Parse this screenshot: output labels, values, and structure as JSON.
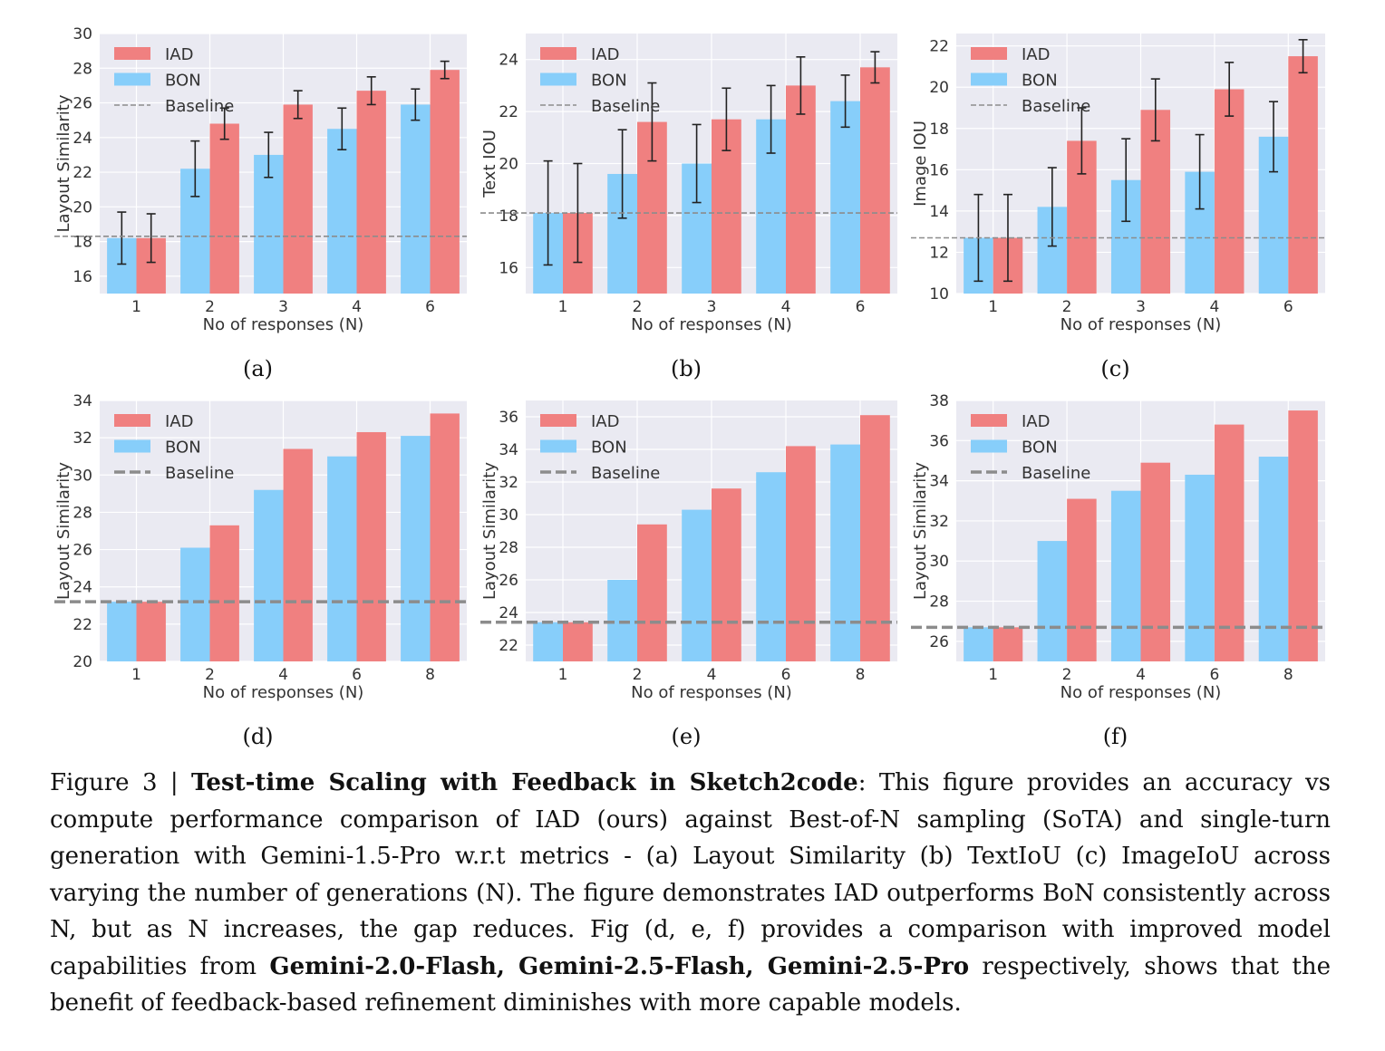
{
  "colors": {
    "iad": "#f08080",
    "bon": "#87cefa",
    "baseline": "#8c8c8c",
    "plot_bg": "#eaeaf2",
    "grid": "#ffffff",
    "error_bar": "#222222"
  },
  "chart_data": [
    {
      "panel": "(a)",
      "type": "bar",
      "categories": [
        "1",
        "2",
        "3",
        "4",
        "6"
      ],
      "xlabel": "No of responses (N)",
      "ylabel": "Layout Similarity",
      "ylim": [
        15,
        30
      ],
      "yticks": [
        16,
        18,
        20,
        22,
        24,
        26,
        28,
        30
      ],
      "series": [
        {
          "name": "IAD",
          "values": [
            18.2,
            24.8,
            25.9,
            26.7,
            27.9
          ],
          "errors": [
            1.4,
            0.9,
            0.8,
            0.8,
            0.5
          ]
        },
        {
          "name": "BON",
          "values": [
            18.2,
            22.2,
            23.0,
            24.5,
            25.9
          ],
          "errors": [
            1.5,
            1.6,
            1.3,
            1.2,
            0.9
          ]
        }
      ],
      "baseline": {
        "name": "Baseline",
        "value": 18.3,
        "style": "thin"
      },
      "legend": "top-left",
      "grid": true
    },
    {
      "panel": "(b)",
      "type": "bar",
      "categories": [
        "1",
        "2",
        "3",
        "4",
        "6"
      ],
      "xlabel": "No of responses (N)",
      "ylabel": "Text IOU",
      "ylim": [
        15,
        25
      ],
      "yticks": [
        16,
        18,
        20,
        22,
        24
      ],
      "series": [
        {
          "name": "IAD",
          "values": [
            18.1,
            21.6,
            21.7,
            23.0,
            23.7
          ],
          "errors": [
            1.9,
            1.5,
            1.2,
            1.1,
            0.6
          ]
        },
        {
          "name": "BON",
          "values": [
            18.1,
            19.6,
            20.0,
            21.7,
            22.4
          ],
          "errors": [
            2.0,
            1.7,
            1.5,
            1.3,
            1.0
          ]
        }
      ],
      "baseline": {
        "name": "Baseline",
        "value": 18.1,
        "style": "thin"
      },
      "legend": "top-left",
      "grid": true
    },
    {
      "panel": "(c)",
      "type": "bar",
      "categories": [
        "1",
        "2",
        "3",
        "4",
        "6"
      ],
      "xlabel": "No of responses (N)",
      "ylabel": "Image IOU",
      "ylim": [
        10,
        22.6
      ],
      "yticks": [
        10,
        12,
        14,
        16,
        18,
        20,
        22
      ],
      "series": [
        {
          "name": "IAD",
          "values": [
            12.7,
            17.4,
            18.9,
            19.9,
            21.5
          ],
          "errors": [
            2.1,
            1.6,
            1.5,
            1.3,
            0.8
          ]
        },
        {
          "name": "BON",
          "values": [
            12.7,
            14.2,
            15.5,
            15.9,
            17.6
          ],
          "errors": [
            2.1,
            1.9,
            2.0,
            1.8,
            1.7
          ]
        }
      ],
      "baseline": {
        "name": "Baseline",
        "value": 12.7,
        "style": "thin"
      },
      "legend": "top-left",
      "grid": true
    },
    {
      "panel": "(d)",
      "type": "bar",
      "categories": [
        "1",
        "2",
        "4",
        "6",
        "8"
      ],
      "xlabel": "No of responses (N)",
      "ylabel": "Layout Similarity",
      "ylim": [
        20,
        34
      ],
      "yticks": [
        20,
        22,
        24,
        26,
        28,
        30,
        32,
        34
      ],
      "series": [
        {
          "name": "IAD",
          "values": [
            23.2,
            27.3,
            31.4,
            32.3,
            33.3
          ]
        },
        {
          "name": "BON",
          "values": [
            23.2,
            26.1,
            29.2,
            31.0,
            32.1
          ]
        }
      ],
      "baseline": {
        "name": "Baseline",
        "value": 23.2,
        "style": "thick"
      },
      "legend": "top-left",
      "grid": true
    },
    {
      "panel": "(e)",
      "type": "bar",
      "categories": [
        "1",
        "2",
        "4",
        "6",
        "8"
      ],
      "xlabel": "No of responses (N)",
      "ylabel": "Layout Similarity",
      "ylim": [
        21,
        37
      ],
      "yticks": [
        22,
        24,
        26,
        28,
        30,
        32,
        34,
        36
      ],
      "series": [
        {
          "name": "IAD",
          "values": [
            23.4,
            29.4,
            31.6,
            34.2,
            36.1
          ]
        },
        {
          "name": "BON",
          "values": [
            23.4,
            26.0,
            30.3,
            32.6,
            34.3
          ]
        }
      ],
      "baseline": {
        "name": "Baseline",
        "value": 23.4,
        "style": "thick"
      },
      "legend": "top-left",
      "grid": true
    },
    {
      "panel": "(f)",
      "type": "bar",
      "categories": [
        "1",
        "2",
        "4",
        "6",
        "8"
      ],
      "xlabel": "No of responses (N)",
      "ylabel": "Layout Similarity",
      "ylim": [
        25,
        38
      ],
      "yticks": [
        26,
        28,
        30,
        32,
        34,
        36,
        38
      ],
      "series": [
        {
          "name": "IAD",
          "values": [
            26.7,
            33.1,
            34.9,
            36.8,
            37.5
          ]
        },
        {
          "name": "BON",
          "values": [
            26.7,
            31.0,
            33.5,
            34.3,
            35.2
          ]
        }
      ],
      "baseline": {
        "name": "Baseline",
        "value": 26.7,
        "style": "thick"
      },
      "legend": "top-left",
      "grid": true
    }
  ],
  "caption": {
    "prefix": "Figure 3 | ",
    "bold_title": "Test-time Scaling with Feedback in Sketch2code",
    "part1": ": This figure provides an accuracy vs compute performance comparison of IAD (ours) against Best-of-N sampling (SoTA) and single-turn generation with Gemini-1.5-Pro w.r.t metrics - (a) Layout Similarity (b) TextIoU (c) ImageIoU across varying the number of generations (N). The figure demonstrates IAD outperforms BoN consistently across N, but as N increases, the gap reduces. Fig (d, e, f) provides a comparison with improved model capabilities from ",
    "bold_models": "Gemini-2.0-Flash, Gemini-2.5-Flash, Gemini-2.5-Pro",
    "part2": " respectively, shows that the benefit of feedback-based refinement diminishes with more capable models."
  }
}
